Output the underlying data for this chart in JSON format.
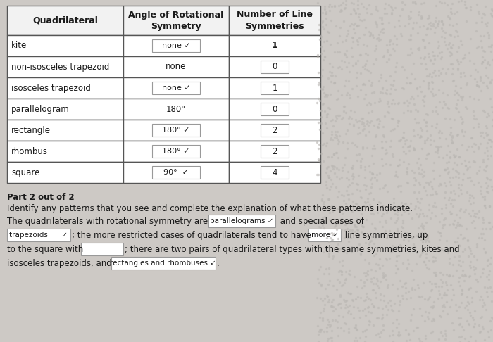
{
  "table_headers": [
    "Quadrilateral",
    "Angle of Rotational\nSymmetry",
    "Number of Line\nSymmetries"
  ],
  "rows": [
    {
      "quad": "kite",
      "angle": "none ✓",
      "angle_box": true,
      "num": "1",
      "num_box": false
    },
    {
      "quad": "non-isosceles trapezoid",
      "angle": "none",
      "angle_box": false,
      "num": "0",
      "num_box": true
    },
    {
      "quad": "isosceles trapezoid",
      "angle": "none ✓",
      "angle_box": true,
      "num": "1",
      "num_box": true
    },
    {
      "quad": "parallelogram",
      "angle": "180°",
      "angle_box": false,
      "num": "0",
      "num_box": true
    },
    {
      "quad": "rectangle",
      "angle": "180° ✓",
      "angle_box": true,
      "num": "2",
      "num_box": true
    },
    {
      "quad": "rhombus",
      "angle": "180° ✓",
      "angle_box": true,
      "num": "2",
      "num_box": true
    },
    {
      "quad": "square",
      "angle": "90°  ✓",
      "angle_box": true,
      "num": "4",
      "num_box": true
    }
  ],
  "bg_color": "#cdc9c5",
  "table_bg": "#ffffff",
  "header_bg": "#f0f0f0",
  "text_color": "#1a1a1a",
  "part2_title": "Part 2 out of 2",
  "part2_desc": "Identify any patterns that you see and complete the explanation of what these patterns indicate."
}
